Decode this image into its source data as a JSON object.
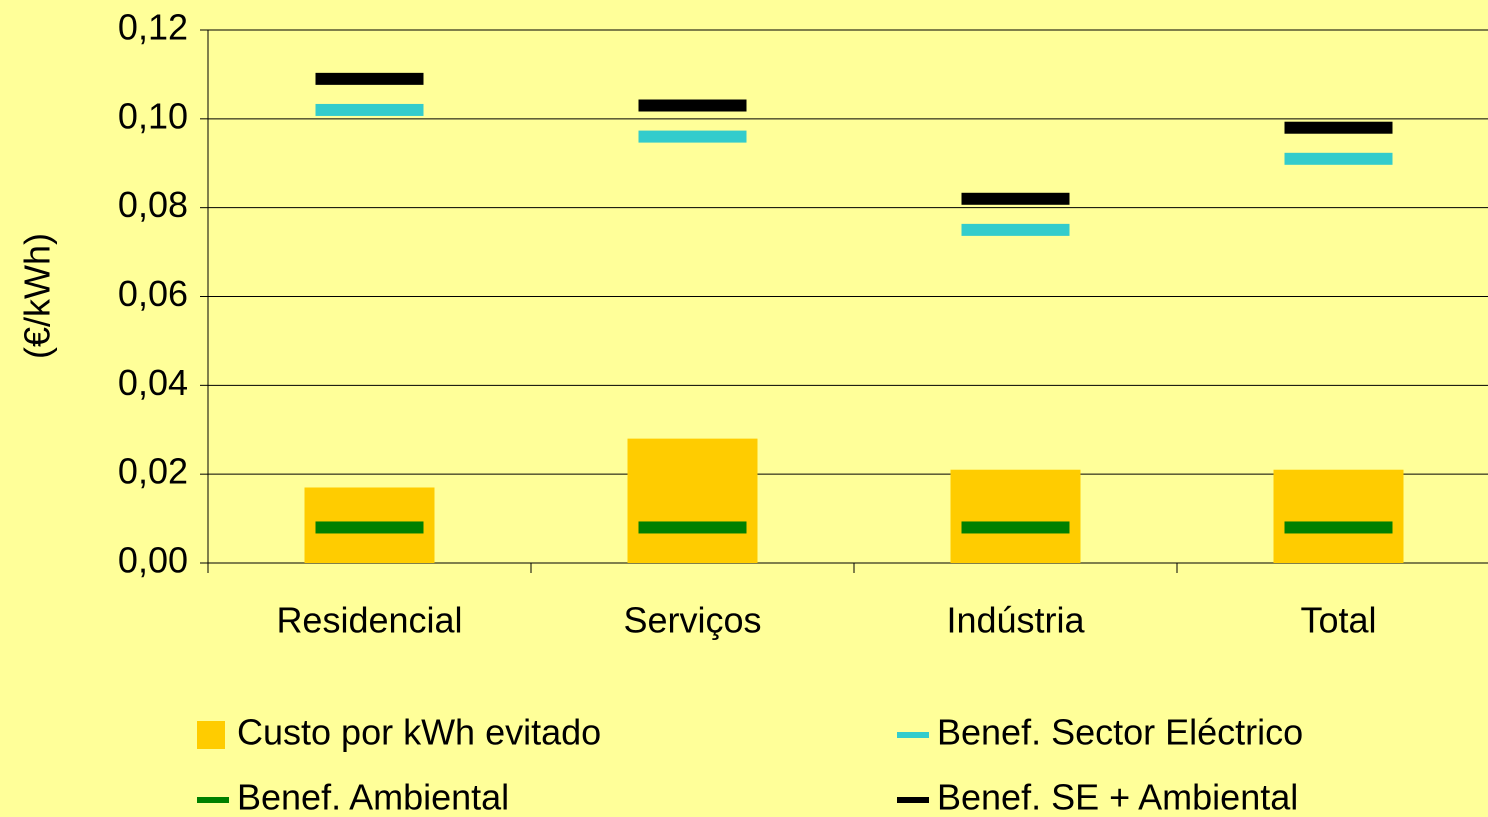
{
  "chart_data": {
    "type": "bar_marker",
    "y_label": "(€/kWh)",
    "categories": [
      "Residencial",
      "Serviços",
      "Indústria",
      "Total"
    ],
    "series": [
      {
        "name": "Custo por kWh evitado",
        "kind": "bar",
        "color": "#ffcc00",
        "values": [
          0.017,
          0.028,
          0.021,
          0.021
        ]
      },
      {
        "name": "Benef. Sector Eléctrico",
        "kind": "marker",
        "color": "#33cccc",
        "values": [
          0.102,
          0.096,
          0.075,
          0.091
        ]
      },
      {
        "name": "Benef. Ambiental",
        "kind": "marker",
        "color": "#008000",
        "values": [
          0.008,
          0.008,
          0.008,
          0.008
        ]
      },
      {
        "name": "Benef. SE + Ambiental",
        "kind": "marker",
        "color": "#000000",
        "values": [
          0.109,
          0.103,
          0.082,
          0.098
        ]
      }
    ],
    "ylim": [
      0,
      0.12
    ],
    "yticks": [
      {
        "value": 0,
        "label": "0,00"
      },
      {
        "value": 0.02,
        "label": "0,02"
      },
      {
        "value": 0.04,
        "label": "0,04"
      },
      {
        "value": 0.06,
        "label": "0,06"
      },
      {
        "value": 0.08,
        "label": "0,08"
      },
      {
        "value": 0.1,
        "label": "0,10"
      },
      {
        "value": 0.12,
        "label": "0,12"
      }
    ],
    "grid": true,
    "legend": "bottom"
  }
}
